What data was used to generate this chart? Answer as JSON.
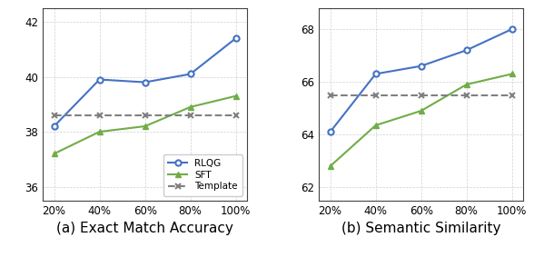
{
  "x_labels": [
    "20%",
    "40%",
    "60%",
    "80%",
    "100%"
  ],
  "x_values": [
    20,
    40,
    60,
    80,
    100
  ],
  "plot_a": {
    "title": "(a) Exact Match Accuracy",
    "rlqg": [
      38.2,
      39.9,
      39.8,
      40.1,
      41.4
    ],
    "sft": [
      37.2,
      38.0,
      38.2,
      38.9,
      39.3
    ],
    "template": [
      38.6,
      38.6,
      38.6,
      38.6,
      38.6
    ],
    "ylim": [
      35.5,
      42.5
    ],
    "yticks": [
      36,
      38,
      40,
      42
    ]
  },
  "plot_b": {
    "title": "(b) Semantic Similarity",
    "rlqg": [
      64.1,
      66.3,
      66.6,
      67.2,
      68.0
    ],
    "sft": [
      62.8,
      64.35,
      64.9,
      65.9,
      66.3
    ],
    "template": [
      65.5,
      65.5,
      65.5,
      65.5,
      65.5
    ],
    "ylim": [
      61.5,
      68.8
    ],
    "yticks": [
      62,
      64,
      66,
      68
    ]
  },
  "rlqg_color": "#4472C4",
  "sft_color": "#70AD47",
  "template_color": "#808080",
  "legend_labels": [
    "RLQG",
    "SFT",
    "Template"
  ],
  "title_fontsize": 11,
  "tick_fontsize": 8.5
}
